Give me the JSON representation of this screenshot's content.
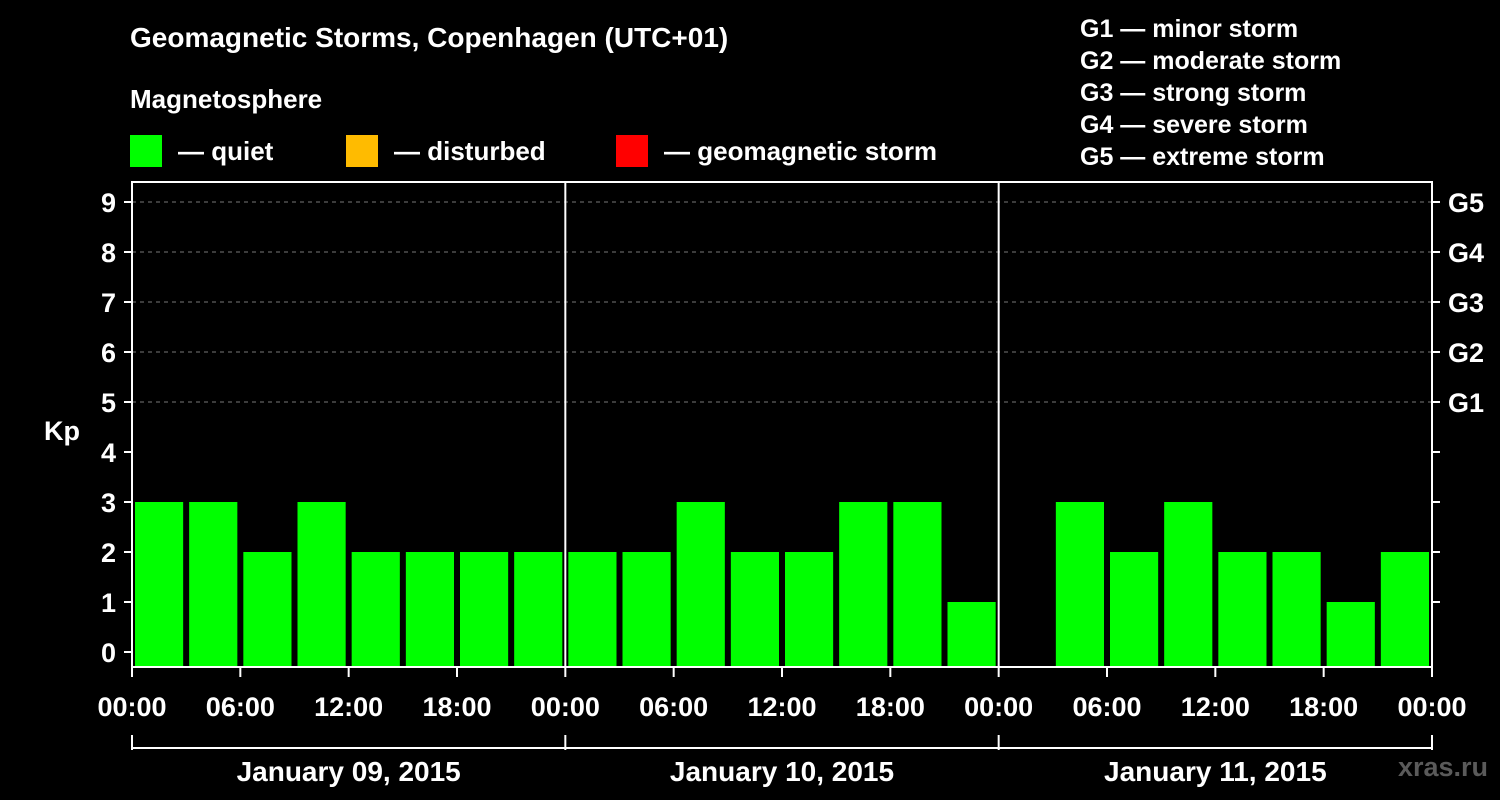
{
  "title": "Geomagnetic Storms, Copenhagen (UTC+01)",
  "magnetosphere_heading": "Magnetosphere",
  "status_legend": [
    {
      "label": "— quiet",
      "color": "#00ff00"
    },
    {
      "label": "— disturbed",
      "color": "#ffbb00"
    },
    {
      "label": "— geomagnetic storm",
      "color": "#ff0000"
    }
  ],
  "storm_scale_legend": [
    "G1 — minor storm",
    "G2 — moderate storm",
    "G3 — strong storm",
    "G4 — severe storm",
    "G5 — extreme storm"
  ],
  "watermark": "xras.ru",
  "chart_data": {
    "type": "bar",
    "ylabel": "Kp",
    "ylim": [
      0,
      9
    ],
    "yticks": [
      "0",
      "1",
      "2",
      "3",
      "4",
      "5",
      "6",
      "7",
      "8",
      "9"
    ],
    "right_ticks": [
      {
        "kp": 5,
        "label": "G1"
      },
      {
        "kp": 6,
        "label": "G2"
      },
      {
        "kp": 7,
        "label": "G3"
      },
      {
        "kp": 8,
        "label": "G4"
      },
      {
        "kp": 9,
        "label": "G5"
      }
    ],
    "grid": "horizontal dashed at Kp 5-9",
    "xtick_labels": [
      "00:00",
      "06:00",
      "12:00",
      "18:00",
      "00:00",
      "06:00",
      "12:00",
      "18:00",
      "00:00",
      "06:00",
      "12:00",
      "18:00",
      "00:00"
    ],
    "days": [
      "January 09, 2015",
      "January 10, 2015",
      "January 11, 2015"
    ],
    "bar_color": "#00ff00",
    "series": [
      {
        "day": "January 09, 2015",
        "values": [
          3,
          3,
          2,
          3,
          2,
          2,
          2,
          2
        ]
      },
      {
        "day": "January 10, 2015",
        "values": [
          2,
          2,
          3,
          2,
          2,
          3,
          3,
          1
        ]
      },
      {
        "day": "January 11, 2015",
        "values": [
          null,
          3,
          2,
          3,
          2,
          2,
          1,
          2
        ]
      }
    ],
    "trailing_value": 2
  }
}
